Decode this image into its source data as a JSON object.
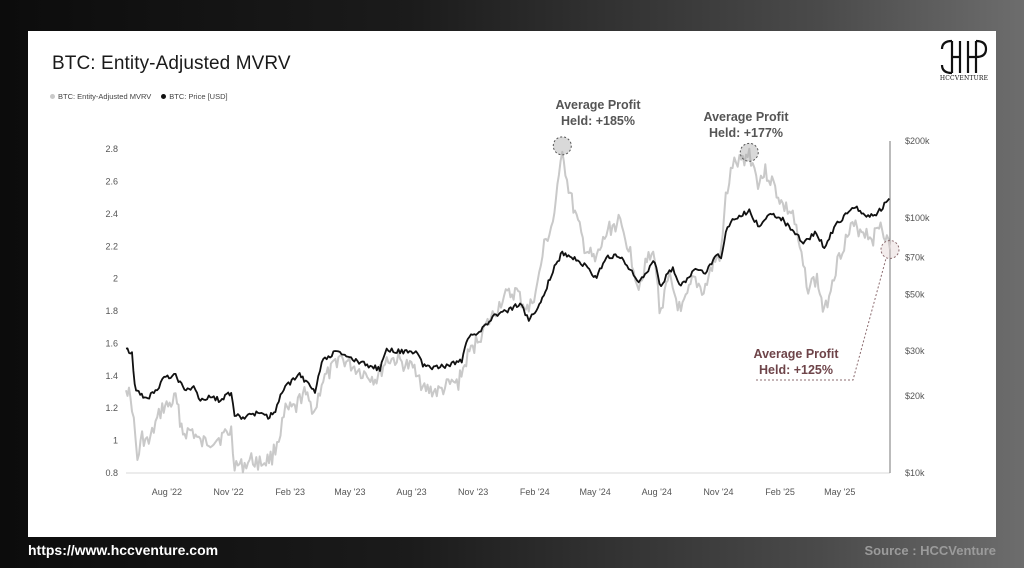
{
  "title": "BTC: Entity-Adjusted MVRV",
  "legend": [
    {
      "label": "BTC: Entity-Adjusted MVRV",
      "color": "#c9c9c9"
    },
    {
      "label": "BTC: Price [USD]",
      "color": "#111111"
    }
  ],
  "logo_text": "HCCVENTURE",
  "footer": {
    "url": "https://www.hccventure.com",
    "source": "Source : HCCVenture"
  },
  "annotations": [
    {
      "line1": "Average Profit",
      "line2": "Held: +185%",
      "color": "#555555"
    },
    {
      "line1": "Average Profit",
      "line2": "Held: +177%",
      "color": "#555555"
    },
    {
      "line1": "Average Profit",
      "line2": "Held: +125%",
      "color": "#6e4449"
    }
  ],
  "chart_data": {
    "type": "line",
    "x_tick_labels": [
      "Aug '22",
      "Nov '22",
      "Feb '23",
      "May '23",
      "Aug '23",
      "Nov '23",
      "Feb '24",
      "May '24",
      "Aug '24",
      "Nov '24",
      "Feb '25",
      "May '25"
    ],
    "x_range": [
      "2022-06-01",
      "2025-07-15"
    ],
    "y_left": {
      "label": "",
      "ticks": [
        "0.8",
        "1",
        "1.2",
        "1.4",
        "1.6",
        "1.8",
        "2",
        "2.2",
        "2.4",
        "2.6",
        "2.8"
      ],
      "range": [
        0.8,
        2.85
      ]
    },
    "y_right": {
      "label": "",
      "scale": "log",
      "ticks": [
        "$10k",
        "$20k",
        "$30k",
        "$50k",
        "$70k",
        "$100k",
        "$200k"
      ],
      "tick_values": [
        10000,
        20000,
        30000,
        50000,
        70000,
        100000,
        200000
      ],
      "range": [
        10000,
        200000
      ]
    },
    "grid": "none",
    "legend_position": "top-left",
    "series": [
      {
        "name": "BTC: Entity-Adjusted MVRV",
        "axis": "left",
        "color": "#c9c9c9",
        "points": [
          [
            "2022-06-01",
            1.35
          ],
          [
            "2022-06-10",
            1.22
          ],
          [
            "2022-06-18",
            0.88
          ],
          [
            "2022-06-25",
            1.02
          ],
          [
            "2022-07-05",
            0.98
          ],
          [
            "2022-07-15",
            1.1
          ],
          [
            "2022-07-25",
            1.2
          ],
          [
            "2022-08-05",
            1.22
          ],
          [
            "2022-08-14",
            1.26
          ],
          [
            "2022-08-25",
            1.05
          ],
          [
            "2022-09-08",
            1.06
          ],
          [
            "2022-09-20",
            0.98
          ],
          [
            "2022-10-05",
            1.0
          ],
          [
            "2022-10-20",
            1.02
          ],
          [
            "2022-11-05",
            1.06
          ],
          [
            "2022-11-10",
            0.86
          ],
          [
            "2022-11-20",
            0.84
          ],
          [
            "2022-12-05",
            0.88
          ],
          [
            "2022-12-20",
            0.86
          ],
          [
            "2023-01-05",
            0.9
          ],
          [
            "2023-01-15",
            1.02
          ],
          [
            "2023-01-25",
            1.18
          ],
          [
            "2023-02-10",
            1.2
          ],
          [
            "2023-02-20",
            1.3
          ],
          [
            "2023-03-10",
            1.18
          ],
          [
            "2023-03-20",
            1.36
          ],
          [
            "2023-04-05",
            1.44
          ],
          [
            "2023-04-14",
            1.52
          ],
          [
            "2023-05-05",
            1.46
          ],
          [
            "2023-05-20",
            1.42
          ],
          [
            "2023-06-10",
            1.38
          ],
          [
            "2023-06-25",
            1.5
          ],
          [
            "2023-07-10",
            1.5
          ],
          [
            "2023-07-25",
            1.46
          ],
          [
            "2023-08-10",
            1.44
          ],
          [
            "2023-08-18",
            1.32
          ],
          [
            "2023-09-10",
            1.3
          ],
          [
            "2023-09-25",
            1.34
          ],
          [
            "2023-10-10",
            1.36
          ],
          [
            "2023-10-24",
            1.52
          ],
          [
            "2023-11-10",
            1.64
          ],
          [
            "2023-12-05",
            1.8
          ],
          [
            "2023-12-15",
            1.88
          ],
          [
            "2024-01-05",
            1.92
          ],
          [
            "2024-01-12",
            1.86
          ],
          [
            "2024-01-23",
            1.8
          ],
          [
            "2024-02-05",
            1.96
          ],
          [
            "2024-02-15",
            2.2
          ],
          [
            "2024-02-28",
            2.35
          ],
          [
            "2024-03-08",
            2.6
          ],
          [
            "2024-03-13",
            2.82
          ],
          [
            "2024-03-20",
            2.6
          ],
          [
            "2024-04-01",
            2.4
          ],
          [
            "2024-04-15",
            2.2
          ],
          [
            "2024-05-01",
            2.1
          ],
          [
            "2024-05-20",
            2.3
          ],
          [
            "2024-06-05",
            2.35
          ],
          [
            "2024-06-20",
            2.2
          ],
          [
            "2024-07-05",
            1.95
          ],
          [
            "2024-07-15",
            2.1
          ],
          [
            "2024-07-29",
            2.15
          ],
          [
            "2024-08-05",
            1.8
          ],
          [
            "2024-08-20",
            2.0
          ],
          [
            "2024-09-06",
            1.78
          ],
          [
            "2024-09-25",
            2.0
          ],
          [
            "2024-10-10",
            1.92
          ],
          [
            "2024-10-25",
            2.1
          ],
          [
            "2024-11-05",
            2.15
          ],
          [
            "2024-11-12",
            2.5
          ],
          [
            "2024-11-22",
            2.7
          ],
          [
            "2024-12-05",
            2.72
          ],
          [
            "2024-12-17",
            2.78
          ],
          [
            "2024-12-30",
            2.6
          ],
          [
            "2025-01-10",
            2.66
          ],
          [
            "2025-01-20",
            2.6
          ],
          [
            "2025-02-05",
            2.45
          ],
          [
            "2025-02-20",
            2.4
          ],
          [
            "2025-03-05",
            2.12
          ],
          [
            "2025-03-15",
            1.95
          ],
          [
            "2025-03-28",
            2.0
          ],
          [
            "2025-04-08",
            1.78
          ],
          [
            "2025-04-20",
            2.0
          ],
          [
            "2025-05-05",
            2.2
          ],
          [
            "2025-05-20",
            2.32
          ],
          [
            "2025-06-05",
            2.3
          ],
          [
            "2025-06-20",
            2.25
          ],
          [
            "2025-07-01",
            2.35
          ],
          [
            "2025-07-15",
            2.18
          ]
        ]
      },
      {
        "name": "BTC: Price [USD]",
        "axis": "right",
        "color": "#111111",
        "points": [
          [
            "2022-06-01",
            30500
          ],
          [
            "2022-06-10",
            29500
          ],
          [
            "2022-06-14",
            22000
          ],
          [
            "2022-06-20",
            20500
          ],
          [
            "2022-07-01",
            19500
          ],
          [
            "2022-07-15",
            21000
          ],
          [
            "2022-07-28",
            23500
          ],
          [
            "2022-08-14",
            24300
          ],
          [
            "2022-08-25",
            21500
          ],
          [
            "2022-09-10",
            21500
          ],
          [
            "2022-09-20",
            19000
          ],
          [
            "2022-10-05",
            20000
          ],
          [
            "2022-10-20",
            19200
          ],
          [
            "2022-11-05",
            20800
          ],
          [
            "2022-11-10",
            16800
          ],
          [
            "2022-11-25",
            16500
          ],
          [
            "2022-12-15",
            17300
          ],
          [
            "2022-12-30",
            16600
          ],
          [
            "2023-01-10",
            17500
          ],
          [
            "2023-01-20",
            21000
          ],
          [
            "2023-02-15",
            24500
          ],
          [
            "2023-03-10",
            20500
          ],
          [
            "2023-03-20",
            27500
          ],
          [
            "2023-04-14",
            30300
          ],
          [
            "2023-05-10",
            27500
          ],
          [
            "2023-06-15",
            25500
          ],
          [
            "2023-06-25",
            30500
          ],
          [
            "2023-07-15",
            30000
          ],
          [
            "2023-08-10",
            29500
          ],
          [
            "2023-08-18",
            26200
          ],
          [
            "2023-09-10",
            25800
          ],
          [
            "2023-09-25",
            26500
          ],
          [
            "2023-10-15",
            27500
          ],
          [
            "2023-10-24",
            34000
          ],
          [
            "2023-11-15",
            36500
          ],
          [
            "2023-12-05",
            42000
          ],
          [
            "2023-12-20",
            43000
          ],
          [
            "2024-01-10",
            46000
          ],
          [
            "2024-01-23",
            39500
          ],
          [
            "2024-02-10",
            47000
          ],
          [
            "2024-02-28",
            62000
          ],
          [
            "2024-03-13",
            73000
          ],
          [
            "2024-04-05",
            68000
          ],
          [
            "2024-04-20",
            64000
          ],
          [
            "2024-05-01",
            58000
          ],
          [
            "2024-05-20",
            70000
          ],
          [
            "2024-06-05",
            71000
          ],
          [
            "2024-06-25",
            61000
          ],
          [
            "2024-07-05",
            56000
          ],
          [
            "2024-07-29",
            68000
          ],
          [
            "2024-08-05",
            54000
          ],
          [
            "2024-08-25",
            64000
          ],
          [
            "2024-09-06",
            54000
          ],
          [
            "2024-09-30",
            64000
          ],
          [
            "2024-10-10",
            60000
          ],
          [
            "2024-10-29",
            72000
          ],
          [
            "2024-11-05",
            69000
          ],
          [
            "2024-11-12",
            88000
          ],
          [
            "2024-11-22",
            99000
          ],
          [
            "2024-12-17",
            106000
          ],
          [
            "2024-12-30",
            93000
          ],
          [
            "2025-01-20",
            105000
          ],
          [
            "2025-02-05",
            98000
          ],
          [
            "2025-02-26",
            85000
          ],
          [
            "2025-03-10",
            80000
          ],
          [
            "2025-03-25",
            87000
          ],
          [
            "2025-04-08",
            77000
          ],
          [
            "2025-04-25",
            94000
          ],
          [
            "2025-05-22",
            111000
          ],
          [
            "2025-06-05",
            104000
          ],
          [
            "2025-06-22",
            101000
          ],
          [
            "2025-07-14",
            119000
          ]
        ]
      }
    ]
  }
}
